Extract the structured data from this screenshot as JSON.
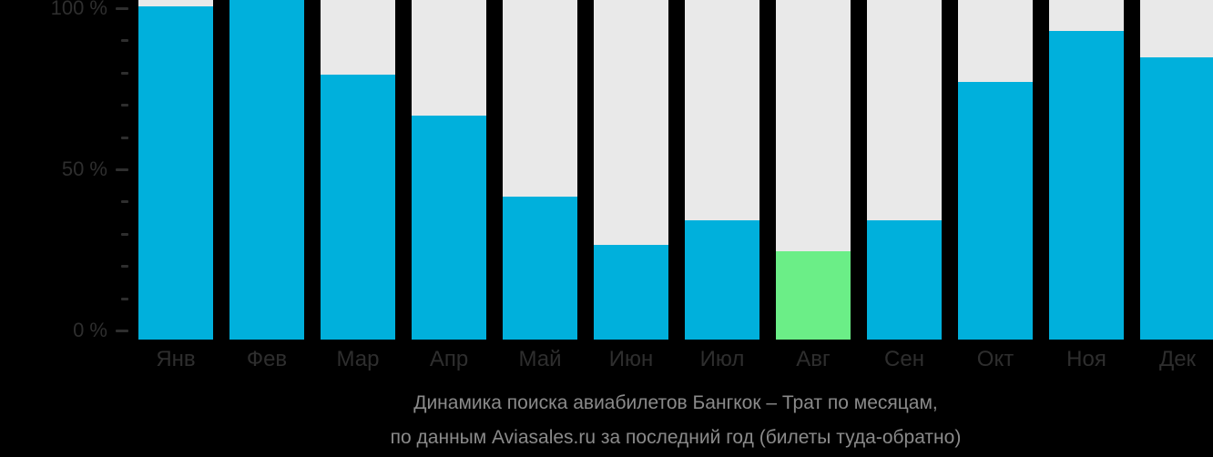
{
  "chart_data": {
    "type": "bar",
    "title_line1": "Динамика поиска авиабилетов Бангкок – Трат по месяцам,",
    "title_line2": "по данным Aviasales.ru за последний год (билеты туда-обратно)",
    "categories": [
      "Янв",
      "Фев",
      "Мар",
      "Апр",
      "Май",
      "Июн",
      "Июл",
      "Авг",
      "Сен",
      "Окт",
      "Ноя",
      "Дек"
    ],
    "values": [
      98,
      100,
      78,
      66,
      42,
      28,
      35,
      26,
      35,
      76,
      91,
      83
    ],
    "highlight": {
      "index": 7,
      "category": "Авг"
    },
    "y_axis": {
      "range": [
        0,
        100
      ],
      "ticks": [
        {
          "value": 100,
          "label": "100 %"
        },
        {
          "value": 50,
          "label": "50 %"
        },
        {
          "value": 0,
          "label": "0 %"
        }
      ],
      "minor_ticks": [
        90,
        80,
        70,
        60,
        40,
        30,
        20,
        10
      ]
    },
    "legend": "none",
    "grid": "off",
    "colors": {
      "bar": "#00b0dc",
      "highlight_bar": "#6bee87",
      "track": "#e9e9e9",
      "background": "#000000",
      "axis_text": "#2e2e2e",
      "caption_text": "#8a8a8a"
    }
  }
}
